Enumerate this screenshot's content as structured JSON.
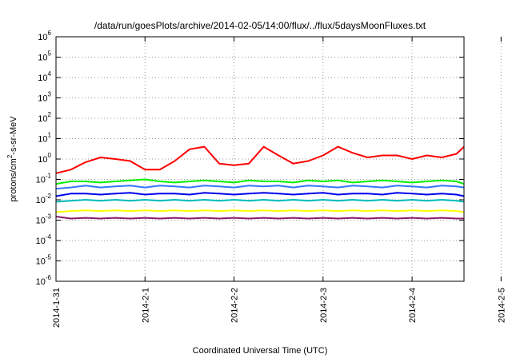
{
  "chart_data": {
    "type": "line",
    "title": "/data/run/goesPlots/archive/2014-02-05/14:00/flux/../flux/5daysMoonFluxes.txt",
    "xlabel": "Coordinated Universal Time (UTC)",
    "ylabel": "protons/cm2-s-sr-MeV",
    "ylabel_parts": {
      "pre": "protons/cm",
      "sup": "2",
      "post": "-s-sr-MeV"
    },
    "y_scale": "log",
    "ylim": [
      1e-06,
      1000000.0
    ],
    "xlim": [
      "2014-01-31",
      "2014-02-05 14:00"
    ],
    "x_ticks": [
      "2014-1-31",
      "2014-2-1",
      "2014-2-2",
      "2014-2-3",
      "2014-2-4",
      "2014-2-5"
    ],
    "y_ticks": [
      {
        "base": "10",
        "exp": "6"
      },
      {
        "base": "10",
        "exp": "5"
      },
      {
        "base": "10",
        "exp": "4"
      },
      {
        "base": "10",
        "exp": "3"
      },
      {
        "base": "10",
        "exp": "2"
      },
      {
        "base": "10",
        "exp": "1"
      },
      {
        "base": "10",
        "exp": "0"
      },
      {
        "base": "10",
        "exp": "-1"
      },
      {
        "base": "10",
        "exp": "-2"
      },
      {
        "base": "10",
        "exp": "-3"
      },
      {
        "base": "10",
        "exp": "-4"
      },
      {
        "base": "10",
        "exp": "-5"
      },
      {
        "base": "10",
        "exp": "-6"
      }
    ],
    "grid": true,
    "legend": "none",
    "x_hours": [
      0,
      4,
      8,
      12,
      16,
      20,
      24,
      28,
      32,
      36,
      40,
      44,
      48,
      52,
      56,
      60,
      64,
      68,
      72,
      76,
      80,
      84,
      88,
      92,
      96,
      100,
      104,
      108,
      110
    ],
    "series": [
      {
        "color": "#ff0000",
        "values": [
          0.2,
          0.3,
          0.7,
          1.2,
          1.0,
          0.8,
          0.3,
          0.3,
          0.8,
          3.0,
          4.0,
          0.6,
          0.5,
          0.6,
          4.0,
          1.5,
          0.6,
          0.8,
          1.5,
          4.0,
          2.0,
          1.2,
          1.5,
          1.5,
          1.0,
          1.5,
          1.2,
          1.8,
          4.0
        ]
      },
      {
        "color": "#00ee00",
        "values": [
          0.06,
          0.08,
          0.08,
          0.07,
          0.08,
          0.09,
          0.1,
          0.08,
          0.07,
          0.08,
          0.09,
          0.08,
          0.07,
          0.09,
          0.08,
          0.08,
          0.07,
          0.09,
          0.08,
          0.09,
          0.07,
          0.08,
          0.09,
          0.08,
          0.07,
          0.08,
          0.09,
          0.08,
          0.06
        ]
      },
      {
        "color": "#3377ff",
        "values": [
          0.035,
          0.04,
          0.05,
          0.04,
          0.045,
          0.05,
          0.04,
          0.05,
          0.045,
          0.04,
          0.05,
          0.045,
          0.04,
          0.05,
          0.045,
          0.05,
          0.04,
          0.05,
          0.045,
          0.04,
          0.05,
          0.045,
          0.04,
          0.05,
          0.045,
          0.04,
          0.05,
          0.045,
          0.04
        ]
      },
      {
        "color": "#0000ee",
        "values": [
          0.015,
          0.02,
          0.02,
          0.018,
          0.02,
          0.022,
          0.018,
          0.02,
          0.02,
          0.018,
          0.022,
          0.02,
          0.018,
          0.02,
          0.022,
          0.02,
          0.018,
          0.02,
          0.022,
          0.018,
          0.02,
          0.02,
          0.018,
          0.022,
          0.02,
          0.018,
          0.02,
          0.018,
          0.015
        ]
      },
      {
        "color": "#00bbbb",
        "values": [
          0.008,
          0.009,
          0.01,
          0.009,
          0.01,
          0.009,
          0.01,
          0.009,
          0.01,
          0.009,
          0.01,
          0.009,
          0.01,
          0.009,
          0.01,
          0.009,
          0.01,
          0.009,
          0.01,
          0.009,
          0.01,
          0.009,
          0.01,
          0.009,
          0.01,
          0.009,
          0.01,
          0.009,
          0.008
        ]
      },
      {
        "color": "#ffff00",
        "values": [
          0.0025,
          0.0028,
          0.003,
          0.0028,
          0.003,
          0.0028,
          0.003,
          0.0028,
          0.003,
          0.0028,
          0.003,
          0.0028,
          0.003,
          0.0028,
          0.003,
          0.0028,
          0.003,
          0.0028,
          0.003,
          0.0028,
          0.003,
          0.0028,
          0.003,
          0.0028,
          0.003,
          0.0028,
          0.003,
          0.0028,
          0.0025
        ]
      },
      {
        "color": "#8b1a6b",
        "values": [
          0.0015,
          0.0012,
          0.0013,
          0.0012,
          0.0013,
          0.0012,
          0.0013,
          0.0012,
          0.0013,
          0.0012,
          0.0013,
          0.0012,
          0.0013,
          0.0012,
          0.0013,
          0.0012,
          0.0013,
          0.0012,
          0.0013,
          0.0012,
          0.0013,
          0.0012,
          0.0013,
          0.0012,
          0.0013,
          0.0012,
          0.0013,
          0.0012,
          0.0012
        ]
      }
    ]
  }
}
